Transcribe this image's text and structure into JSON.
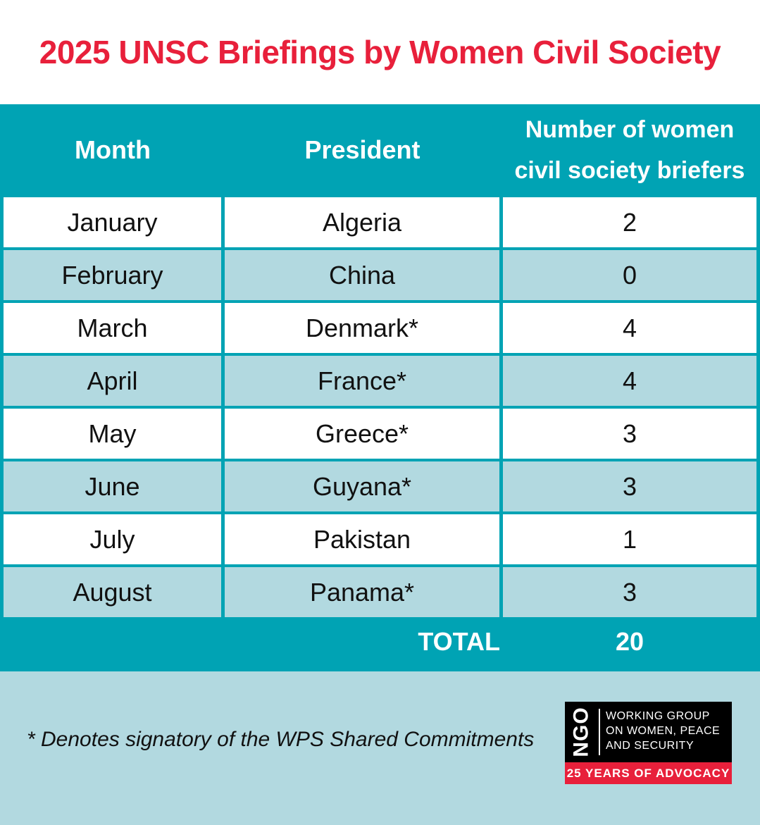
{
  "title": "2025 UNSC Briefings by Women Civil Society",
  "table": {
    "headers": {
      "month": "Month",
      "president": "President",
      "number_line1": "Number of women",
      "number_line2": "civil society briefers"
    },
    "rows": [
      {
        "month": "January",
        "president": "Algeria",
        "count": "2"
      },
      {
        "month": "February",
        "president": "China",
        "count": "0"
      },
      {
        "month": "March",
        "president": "Denmark*",
        "count": "4"
      },
      {
        "month": "April",
        "president": "France*",
        "count": "4"
      },
      {
        "month": "May",
        "president": "Greece*",
        "count": "3"
      },
      {
        "month": "June",
        "president": "Guyana*",
        "count": "3"
      },
      {
        "month": "July",
        "president": "Pakistan",
        "count": "1"
      },
      {
        "month": "August",
        "president": "Panama*",
        "count": "3"
      }
    ],
    "total_label": "TOTAL",
    "total_value": "20"
  },
  "footnote": "* Denotes signatory of the WPS Shared Commitments",
  "logo": {
    "ngo": "NGO",
    "line1": "WORKING GROUP",
    "line2": "ON WOMEN, PEACE",
    "line3": "AND SECURITY",
    "tagline": "25 YEARS OF ADVOCACY"
  },
  "colors": {
    "title_red": "#e8203b",
    "teal": "#00a3b4",
    "light_blue": "#b2d9e0"
  }
}
